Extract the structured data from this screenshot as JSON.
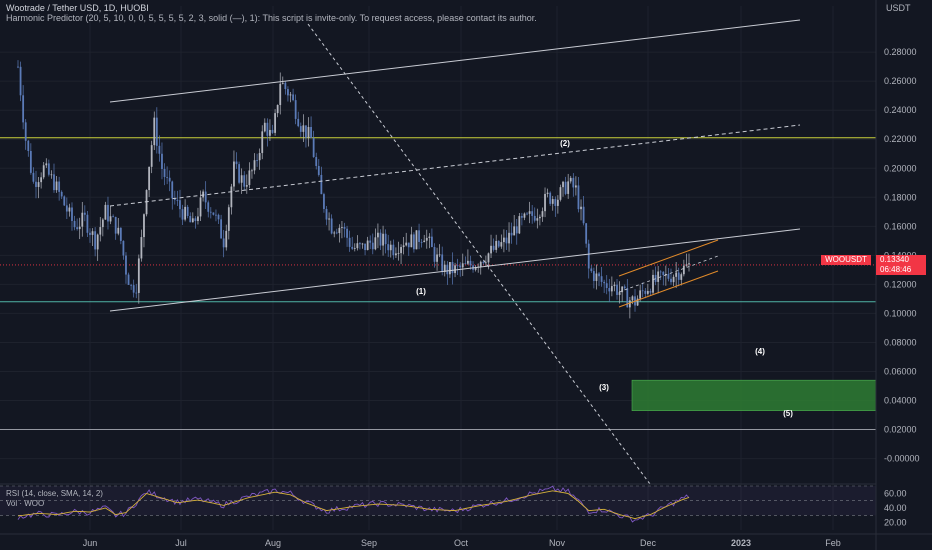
{
  "header": {
    "title": "Wootrade / Tether USD, 1D, HUOBI",
    "indicator": "Harmonic Predictor (20, 5, 10, 0, 0, 5, 5, 5, 5, 2, 3, solid (—), 1): This script is invite-only. To request access, please contact its author."
  },
  "axis": {
    "unit": "USDT",
    "price_ticks": [
      "0.28000",
      "0.26000",
      "0.24000",
      "0.22000",
      "0.20000",
      "0.18000",
      "0.16000",
      "0.14000",
      "0.12000",
      "0.10000",
      "0.08000",
      "0.06000",
      "0.04000",
      "0.02000",
      "-0.00000"
    ],
    "time_ticks": [
      "Jun",
      "Jul",
      "Aug",
      "Sep",
      "Oct",
      "Nov",
      "Dec",
      "2023",
      "Feb"
    ],
    "rsi_ticks": [
      "60.00",
      "40.00",
      "20.00"
    ]
  },
  "price_tag": {
    "symbol": "WOOUSDT",
    "price": "0.13340",
    "countdown": "06:48:46"
  },
  "annotations": [
    "(1)",
    "(2)",
    "(3)",
    "(4)",
    "(5)"
  ],
  "rsi": {
    "label": "RSI (14, close, SMA, 14, 2)",
    "vol_label": "Vol · WOO"
  },
  "colors": {
    "background": "#131722",
    "up": "#b2b5be",
    "down": "#5b7bb8",
    "channel": "#c9ccd4",
    "yellow_line": "#c9d13a",
    "teal_line": "#4fb3a5",
    "orange_channel": "#e08a2a",
    "target_box": "#2e7d32",
    "price_tag": "#f23645",
    "rsi_line": "#7e57c2",
    "rsi_ma": "#d4b03a"
  },
  "chart_data": {
    "type": "candlestick",
    "symbol": "WOOUSDT",
    "timeframe": "1D",
    "ylim": [
      -0.012,
      0.298
    ],
    "last_price": 0.1334,
    "horizontal_levels": [
      0.221,
      0.108,
      0.02
    ],
    "target_zone": [
      0.033,
      0.054
    ],
    "close_path": [
      [
        0,
        0.27
      ],
      [
        3,
        0.22
      ],
      [
        6,
        0.19
      ],
      [
        10,
        0.2
      ],
      [
        14,
        0.19
      ],
      [
        18,
        0.175
      ],
      [
        22,
        0.16
      ],
      [
        26,
        0.165
      ],
      [
        30,
        0.15
      ],
      [
        34,
        0.17
      ],
      [
        38,
        0.16
      ],
      [
        40,
        0.15
      ],
      [
        42,
        0.13
      ],
      [
        44,
        0.118
      ],
      [
        46,
        0.12
      ],
      [
        48,
        0.15
      ],
      [
        50,
        0.19
      ],
      [
        53,
        0.23
      ],
      [
        56,
        0.2
      ],
      [
        60,
        0.18
      ],
      [
        64,
        0.17
      ],
      [
        68,
        0.16
      ],
      [
        72,
        0.18
      ],
      [
        76,
        0.17
      ],
      [
        80,
        0.15
      ],
      [
        84,
        0.2
      ],
      [
        88,
        0.19
      ],
      [
        92,
        0.2
      ],
      [
        96,
        0.23
      ],
      [
        99,
        0.22
      ],
      [
        102,
        0.26
      ],
      [
        106,
        0.25
      ],
      [
        110,
        0.23
      ],
      [
        114,
        0.22
      ],
      [
        118,
        0.18
      ],
      [
        122,
        0.16
      ],
      [
        126,
        0.16
      ],
      [
        130,
        0.145
      ],
      [
        134,
        0.145
      ],
      [
        138,
        0.15
      ],
      [
        142,
        0.15
      ],
      [
        146,
        0.145
      ],
      [
        150,
        0.15
      ],
      [
        154,
        0.15
      ],
      [
        158,
        0.155
      ],
      [
        162,
        0.14
      ],
      [
        166,
        0.13
      ],
      [
        170,
        0.13
      ],
      [
        174,
        0.132
      ],
      [
        178,
        0.135
      ],
      [
        182,
        0.14
      ],
      [
        186,
        0.145
      ],
      [
        190,
        0.15
      ],
      [
        194,
        0.16
      ],
      [
        198,
        0.165
      ],
      [
        202,
        0.17
      ],
      [
        206,
        0.18
      ],
      [
        210,
        0.18
      ],
      [
        214,
        0.19
      ],
      [
        217,
        0.185
      ],
      [
        220,
        0.16
      ],
      [
        222,
        0.13
      ],
      [
        225,
        0.125
      ],
      [
        228,
        0.12
      ],
      [
        231,
        0.12
      ],
      [
        234,
        0.115
      ],
      [
        237,
        0.11
      ],
      [
        240,
        0.108
      ],
      [
        243,
        0.115
      ],
      [
        246,
        0.12
      ],
      [
        249,
        0.123
      ],
      [
        252,
        0.125
      ],
      [
        255,
        0.127
      ],
      [
        258,
        0.13
      ],
      [
        261,
        0.133
      ]
    ],
    "rsi_path": [
      [
        0,
        28
      ],
      [
        8,
        32
      ],
      [
        15,
        30
      ],
      [
        22,
        35
      ],
      [
        28,
        34
      ],
      [
        34,
        40
      ],
      [
        38,
        30
      ],
      [
        42,
        33
      ],
      [
        50,
        62
      ],
      [
        56,
        55
      ],
      [
        62,
        48
      ],
      [
        70,
        52
      ],
      [
        80,
        44
      ],
      [
        90,
        56
      ],
      [
        100,
        64
      ],
      [
        106,
        60
      ],
      [
        112,
        48
      ],
      [
        120,
        36
      ],
      [
        130,
        42
      ],
      [
        140,
        46
      ],
      [
        150,
        44
      ],
      [
        160,
        38
      ],
      [
        170,
        36
      ],
      [
        180,
        44
      ],
      [
        190,
        50
      ],
      [
        200,
        60
      ],
      [
        208,
        66
      ],
      [
        214,
        62
      ],
      [
        218,
        50
      ],
      [
        222,
        36
      ],
      [
        228,
        38
      ],
      [
        234,
        30
      ],
      [
        240,
        24
      ],
      [
        246,
        30
      ],
      [
        252,
        42
      ],
      [
        258,
        52
      ],
      [
        261,
        56
      ]
    ]
  }
}
